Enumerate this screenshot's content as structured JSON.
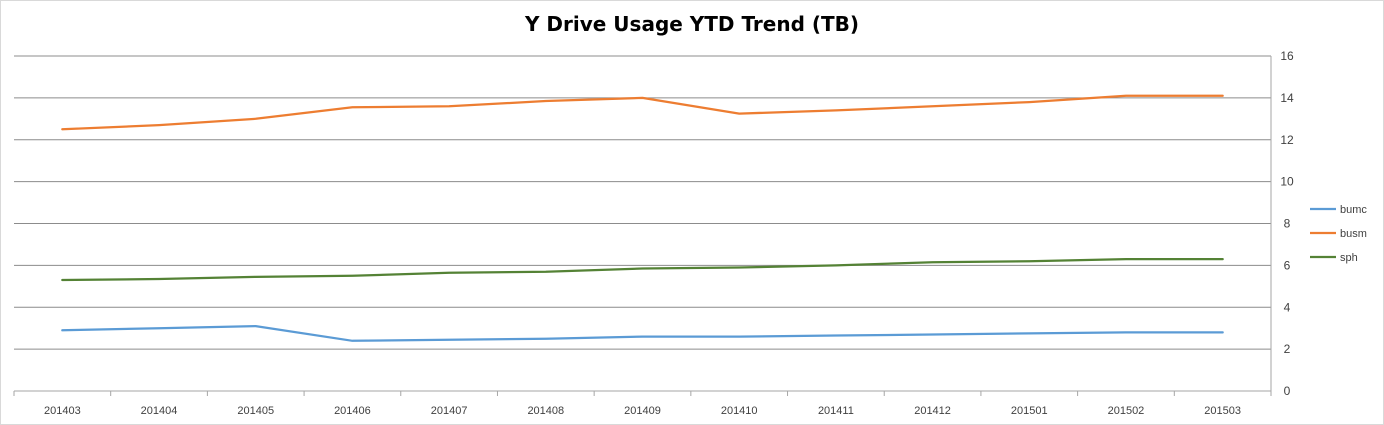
{
  "chart_data": {
    "type": "line",
    "title": "Y Drive Usage YTD Trend (TB)",
    "xlabel": "",
    "ylabel": "",
    "categories": [
      "201403",
      "201404",
      "201405",
      "201406",
      "201407",
      "201408",
      "201409",
      "201410",
      "201411",
      "201412",
      "201501",
      "201502",
      "201503"
    ],
    "ylim": [
      0,
      16
    ],
    "yticks": [
      0,
      2,
      4,
      6,
      8,
      10,
      12,
      14,
      16
    ],
    "y_axis_side": "right",
    "grid": true,
    "legend_position": "right",
    "series": [
      {
        "name": "bumc",
        "color": "#5b9bd5",
        "values": [
          2.9,
          3.0,
          3.1,
          2.4,
          2.45,
          2.5,
          2.6,
          2.6,
          2.65,
          2.7,
          2.75,
          2.8,
          2.8
        ]
      },
      {
        "name": "busm",
        "color": "#ed7d31",
        "values": [
          12.5,
          12.7,
          13.0,
          13.55,
          13.6,
          13.85,
          14.0,
          13.25,
          13.4,
          13.6,
          13.8,
          14.1,
          14.1
        ]
      },
      {
        "name": "sph",
        "color": "#548235",
        "values": [
          5.3,
          5.35,
          5.45,
          5.5,
          5.65,
          5.7,
          5.85,
          5.9,
          6.0,
          6.15,
          6.2,
          6.3,
          6.3
        ]
      }
    ]
  }
}
